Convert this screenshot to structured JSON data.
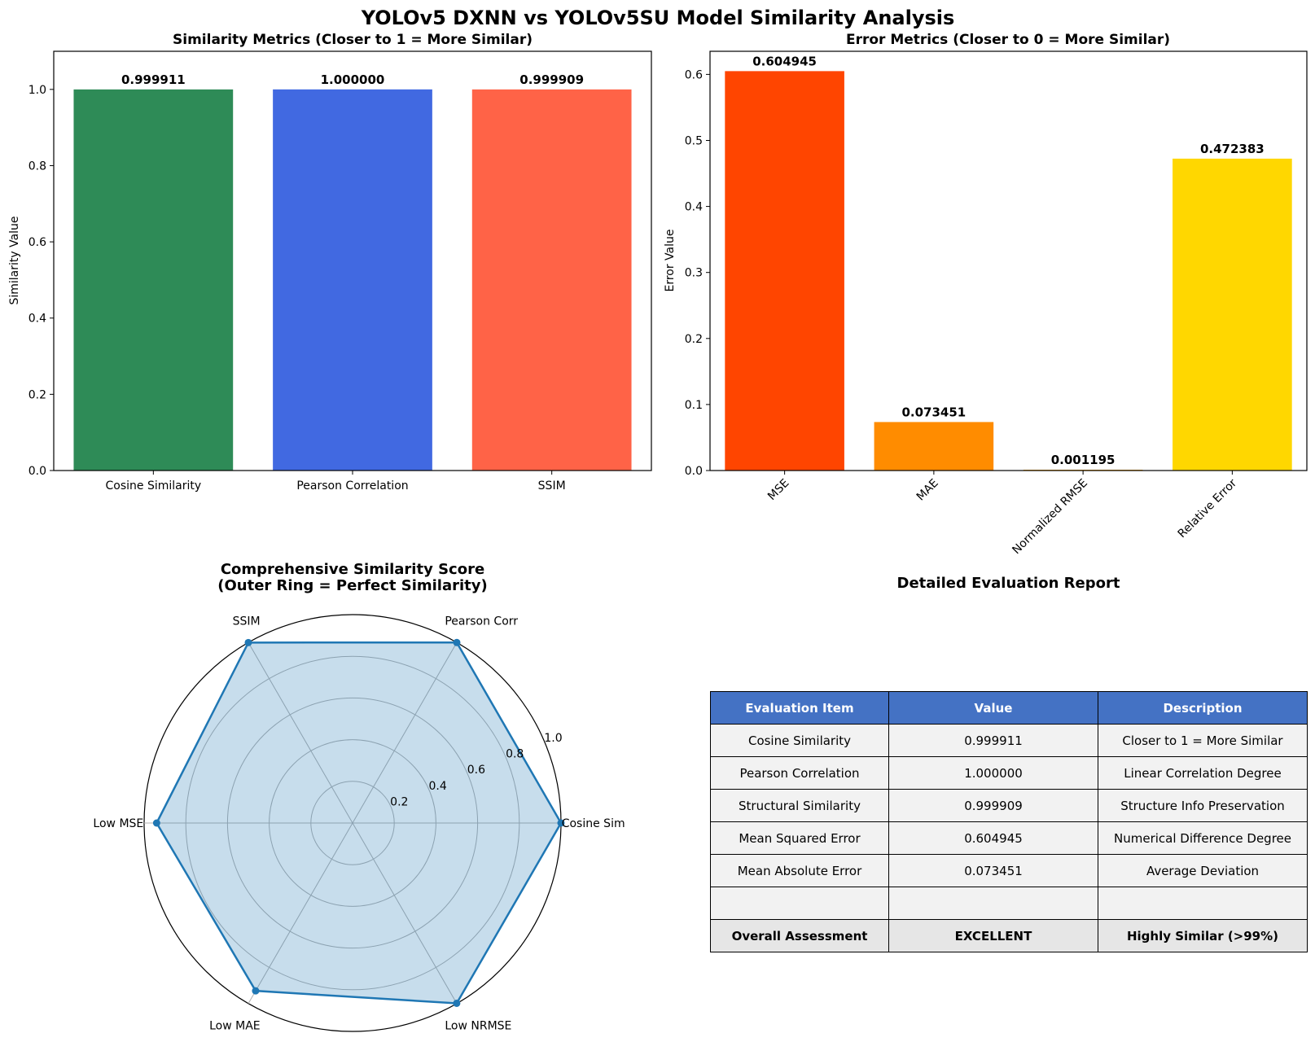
{
  "suptitle": "YOLOv5 DXNN vs YOLOv5SU Model Similarity Analysis",
  "chart_data": [
    {
      "type": "bar",
      "title": "Similarity Metrics (Closer to 1 = More Similar)",
      "xlabel": "",
      "ylabel": "Similarity Value",
      "categories": [
        "Cosine Similarity",
        "Pearson Correlation",
        "SSIM"
      ],
      "values": [
        0.999911,
        1.0,
        0.999909
      ],
      "value_labels": [
        "0.999911",
        "1.000000",
        "0.999909"
      ],
      "colors": [
        "#2e8b57",
        "#4169e1",
        "#ff6347"
      ],
      "ylim": [
        0,
        1.1
      ],
      "yticks": [
        0.0,
        0.2,
        0.4,
        0.6,
        0.8,
        1.0
      ],
      "ytick_labels": [
        "0.0",
        "0.2",
        "0.4",
        "0.6",
        "0.8",
        "1.0"
      ]
    },
    {
      "type": "bar",
      "title": "Error Metrics (Closer to 0 = More Similar)",
      "xlabel": "",
      "ylabel": "Error Value",
      "categories": [
        "MSE",
        "MAE",
        "Normalized RMSE",
        "Relative Error"
      ],
      "values": [
        0.604945,
        0.073451,
        0.001195,
        0.472383
      ],
      "value_labels": [
        "0.604945",
        "0.073451",
        "0.001195",
        "0.472383"
      ],
      "colors": [
        "#ff4500",
        "#ff8c00",
        "#ffa500",
        "#ffd700"
      ],
      "ylim": [
        0,
        0.635
      ],
      "yticks": [
        0.0,
        0.1,
        0.2,
        0.3,
        0.4,
        0.5,
        0.6
      ],
      "ytick_labels": [
        "0.0",
        "0.1",
        "0.2",
        "0.3",
        "0.4",
        "0.5",
        "0.6"
      ]
    },
    {
      "type": "radar",
      "title": "Comprehensive Similarity Score",
      "subtitle": "(Outer Ring = Perfect Similarity)",
      "categories": [
        "Cosine Sim",
        "Pearson Corr",
        "SSIM",
        "Low MSE",
        "Low MAE",
        "Low NRMSE"
      ],
      "values": [
        0.999911,
        1.0,
        0.999909,
        0.94,
        0.93,
        0.999
      ],
      "rmax": 1.0,
      "rticks": [
        0.2,
        0.4,
        0.6,
        0.8,
        1.0
      ],
      "rtick_labels": [
        "0.2",
        "0.4",
        "0.6",
        "0.8",
        "1.0"
      ],
      "line_color": "#1f77b4",
      "fill_color": "#1f77b4"
    },
    {
      "type": "table",
      "title": "Detailed Evaluation Report",
      "columns": [
        "Evaluation Item",
        "Value",
        "Description"
      ],
      "rows": [
        [
          "Cosine Similarity",
          "0.999911",
          "Closer to 1 = More Similar"
        ],
        [
          "Pearson Correlation",
          "1.000000",
          "Linear Correlation Degree"
        ],
        [
          "Structural Similarity",
          "0.999909",
          "Structure Info Preservation"
        ],
        [
          "Mean Squared Error",
          "0.604945",
          "Numerical Difference Degree"
        ],
        [
          "Mean Absolute Error",
          "0.073451",
          "Average Deviation"
        ],
        [
          "",
          "",
          ""
        ],
        [
          "Overall Assessment",
          "EXCELLENT",
          "Highly Similar (>99%)"
        ]
      ],
      "header_color": "#4472c4"
    }
  ]
}
